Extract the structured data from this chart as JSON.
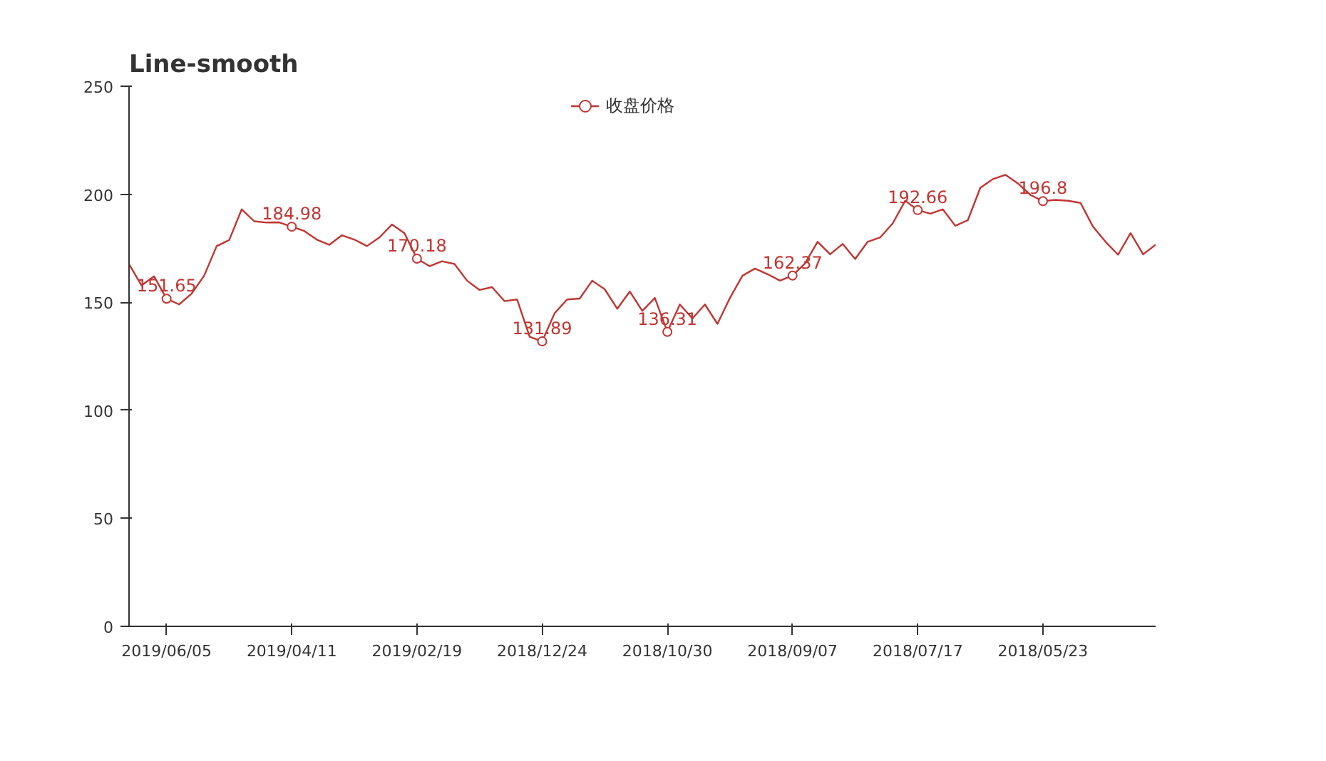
{
  "chart_data": {
    "type": "line",
    "title": "Line-smooth",
    "categories": [
      null,
      null,
      null,
      "2019/06/05",
      null,
      null,
      null,
      null,
      null,
      null,
      null,
      null,
      null,
      "2019/04/11",
      null,
      null,
      null,
      null,
      null,
      null,
      null,
      null,
      null,
      "2019/02/19",
      null,
      null,
      null,
      null,
      null,
      null,
      null,
      null,
      null,
      "2018/12/24",
      null,
      null,
      null,
      null,
      null,
      null,
      null,
      null,
      null,
      "2018/10/30",
      null,
      null,
      null,
      null,
      null,
      null,
      null,
      null,
      null,
      "2018/09/07",
      null,
      null,
      null,
      null,
      null,
      null,
      null,
      null,
      null,
      "2018/07/17",
      null,
      null,
      null,
      null,
      null,
      null,
      null,
      null,
      null,
      "2018/05/23",
      null,
      null,
      null,
      null,
      null,
      null,
      null,
      null,
      null
    ],
    "series": [
      {
        "name": "收盘价格",
        "color": "#c23531",
        "values": [
          167.7,
          157.8,
          162,
          151.65,
          149,
          154,
          162.3,
          176,
          178.8,
          193,
          187.5,
          186.9,
          187,
          184.98,
          183,
          179,
          176.6,
          181,
          179,
          176,
          180,
          186,
          182,
          170.18,
          166.7,
          169,
          167.7,
          160,
          155.7,
          157,
          150.5,
          151.3,
          134,
          131.89,
          145,
          151.3,
          151.7,
          160,
          156,
          147,
          155,
          146,
          152,
          136.31,
          149,
          142.5,
          149,
          140,
          152,
          162.3,
          165.6,
          163,
          160,
          162.37,
          168,
          178,
          172.2,
          177,
          170,
          178,
          180,
          186.5,
          197,
          192.66,
          191,
          193,
          185.4,
          188,
          203,
          207,
          209,
          205,
          199.7,
          196.8,
          197.4,
          197,
          196,
          185,
          178,
          172,
          182,
          172.2,
          176.6
        ],
        "value_labels": [
          null,
          null,
          null,
          "151.65",
          null,
          null,
          null,
          null,
          null,
          null,
          null,
          null,
          null,
          "184.98",
          null,
          null,
          null,
          null,
          null,
          null,
          null,
          null,
          null,
          "170.18",
          null,
          null,
          null,
          null,
          null,
          null,
          null,
          null,
          null,
          "131.89",
          null,
          null,
          null,
          null,
          null,
          null,
          null,
          null,
          null,
          "136.31",
          null,
          null,
          null,
          null,
          null,
          null,
          null,
          null,
          null,
          "162.37",
          null,
          null,
          null,
          null,
          null,
          null,
          null,
          null,
          null,
          "192.66",
          null,
          null,
          null,
          null,
          null,
          null,
          null,
          null,
          null,
          "196.8",
          null,
          null,
          null,
          null,
          null,
          null,
          null,
          null,
          null
        ]
      }
    ],
    "ylim": [
      0,
      250
    ],
    "yticks": [
      0,
      50,
      100,
      150,
      200,
      250
    ],
    "grid": false,
    "legend": "top",
    "marker": "none",
    "line_style": "solid"
  }
}
